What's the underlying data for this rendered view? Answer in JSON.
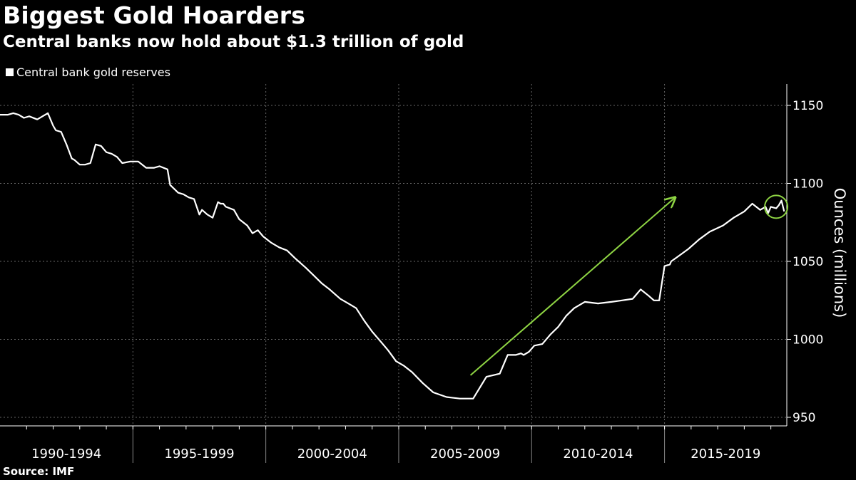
{
  "title": "Biggest Gold Hoarders",
  "subtitle": "Central banks now hold about $1.3 trillion of gold",
  "source": "Source: IMF",
  "colors": {
    "background": "#000000",
    "line": "#ffffff",
    "annotation": "#8ed443",
    "grid": "#666666"
  },
  "chart_data": {
    "type": "line",
    "legend": [
      "Central bank gold reserves"
    ],
    "legend_placement": "top-left",
    "ylabel": "Ounces (millions)",
    "ylabel_side": "right",
    "ylim": [
      945,
      1160
    ],
    "yticks": [
      950,
      1000,
      1050,
      1100,
      1150
    ],
    "xlim": [
      1990.0,
      2019.6
    ],
    "x_categories": [
      "1990-1994",
      "1995-1999",
      "2000-2004",
      "2005-2009",
      "2010-2014",
      "2015-2019"
    ],
    "grid": true,
    "series": [
      {
        "name": "Central bank gold reserves",
        "x": [
          1990.0,
          1990.3,
          1990.5,
          1990.7,
          1990.9,
          1991.1,
          1991.4,
          1991.6,
          1991.8,
          1992.0,
          1992.1,
          1992.3,
          1992.5,
          1992.7,
          1992.8,
          1993.0,
          1993.2,
          1993.4,
          1993.6,
          1993.8,
          1994.0,
          1994.2,
          1994.4,
          1994.6,
          1994.9,
          1995.2,
          1995.5,
          1995.8,
          1996.0,
          1996.3,
          1996.4,
          1996.7,
          1996.9,
          1997.1,
          1997.3,
          1997.5,
          1997.6,
          1997.8,
          1998.0,
          1998.2,
          1998.3,
          1998.4,
          1998.5,
          1998.8,
          1999.0,
          1999.3,
          1999.5,
          1999.7,
          1999.9,
          2000.2,
          2000.5,
          2000.8,
          2001.1,
          2001.5,
          2001.8,
          2002.1,
          2002.4,
          2002.8,
          2003.1,
          2003.4,
          2003.7,
          2004.0,
          2004.3,
          2004.6,
          2004.9,
          2005.2,
          2005.5,
          2005.9,
          2006.3,
          2006.8,
          2007.3,
          2007.8,
          2008.3,
          2008.8,
          2009.1,
          2009.4,
          2009.6,
          2009.7,
          2009.9,
          2010.1,
          2010.4,
          2010.7,
          2011.0,
          2011.3,
          2011.6,
          2012.0,
          2012.5,
          2013.0,
          2013.4,
          2013.8,
          2014.1,
          2014.4,
          2014.6,
          2014.8,
          2015.0,
          2015.2,
          2015.25,
          2015.5,
          2015.9,
          2016.3,
          2016.7,
          2017.2,
          2017.6,
          2018.0,
          2018.3,
          2018.6,
          2018.8,
          2018.9,
          2019.0,
          2019.2,
          2019.3,
          2019.4,
          2019.5
        ],
        "values": [
          1144,
          1144,
          1145,
          1144,
          1142,
          1143,
          1141,
          1143,
          1145,
          1137,
          1134,
          1133,
          1125,
          1116,
          1115,
          1112,
          1112,
          1113,
          1125,
          1124,
          1120,
          1119,
          1117,
          1113,
          1114,
          1114,
          1110,
          1110,
          1111,
          1109,
          1099,
          1094,
          1093,
          1091,
          1090,
          1080,
          1083,
          1080,
          1078,
          1088,
          1087,
          1087,
          1085,
          1083,
          1077,
          1073,
          1068,
          1070,
          1066,
          1062,
          1059,
          1057,
          1052,
          1046,
          1041,
          1036,
          1032,
          1026,
          1023,
          1020,
          1012,
          1005,
          999,
          993,
          986,
          983,
          979,
          972,
          966,
          963,
          962,
          962,
          976,
          978,
          990,
          990,
          991,
          990,
          992,
          996,
          997,
          1003,
          1008,
          1015,
          1020,
          1024,
          1023,
          1024,
          1025,
          1026,
          1032,
          1028,
          1025,
          1025,
          1047,
          1048,
          1050,
          1053,
          1058,
          1064,
          1069,
          1073,
          1078,
          1082,
          1087,
          1083,
          1085,
          1081,
          1085,
          1084,
          1086,
          1089,
          1082
        ]
      }
    ],
    "annotations": [
      {
        "type": "arrow",
        "from": [
          2007.7,
          977
        ],
        "to": [
          2015.4,
          1091
        ]
      },
      {
        "type": "circle",
        "center": [
          2019.2,
          1085
        ]
      }
    ]
  }
}
